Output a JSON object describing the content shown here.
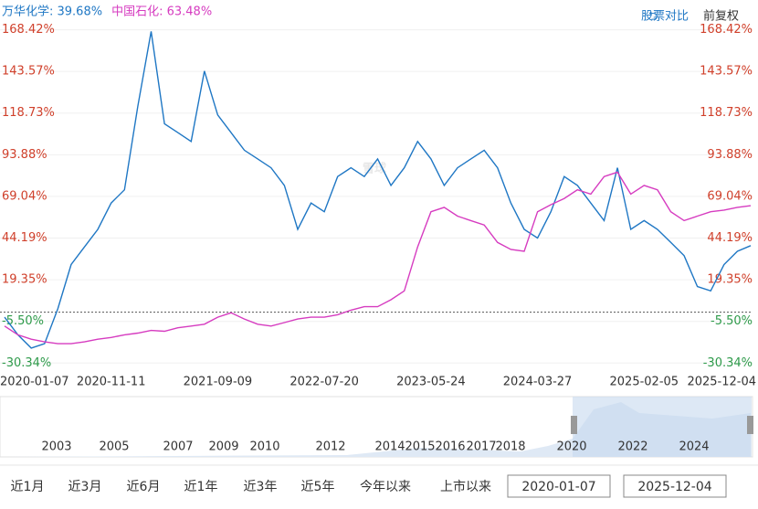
{
  "chart_data": {
    "type": "line",
    "toolbar": {
      "compare": "股票对比",
      "adjust": "前复权"
    },
    "watermark": "雪球",
    "categories": [
      "2020-01-07",
      null,
      null,
      null,
      null,
      null,
      null,
      null,
      "2020-11-11",
      null,
      null,
      null,
      null,
      null,
      null,
      null,
      "2021-09-09",
      null,
      null,
      null,
      null,
      null,
      null,
      null,
      "2022-07-20",
      null,
      null,
      null,
      null,
      null,
      null,
      null,
      "2023-05-24",
      null,
      null,
      null,
      null,
      null,
      null,
      null,
      "2024-03-27",
      null,
      null,
      null,
      null,
      null,
      null,
      null,
      "2025-02-05",
      null,
      null,
      null,
      null,
      null,
      null,
      null,
      "2025-12-04"
    ],
    "series": [
      {
        "name": "万华化学: 39.68%",
        "color": "#1f77c4",
        "values": [
          -3.0,
          -13.5,
          -21.4,
          -18.8,
          2.2,
          28.4,
          38.9,
          49.4,
          65.1,
          73.0,
          122.8,
          167.4,
          112.3,
          107.1,
          101.8,
          143.8,
          117.6,
          107.1,
          96.6,
          91.4,
          86.1,
          75.6,
          49.4,
          65.1,
          59.9,
          80.9,
          86.1,
          80.9,
          91.4,
          75.6,
          86.1,
          101.8,
          91.4,
          75.6,
          86.1,
          91.4,
          96.6,
          86.1,
          65.1,
          49.4,
          44.2,
          59.9,
          80.9,
          75.6,
          65.1,
          54.6,
          86.1,
          49.4,
          54.6,
          49.4,
          41.6,
          33.7,
          15.3,
          12.7,
          28.4,
          36.3,
          39.68
        ]
      },
      {
        "name": "中国石化: 63.48%",
        "color": "#d63cc0",
        "values": [
          -8.3,
          -13.5,
          -16.1,
          -17.7,
          -18.8,
          -18.8,
          -17.7,
          -16.1,
          -15.1,
          -13.5,
          -12.5,
          -10.9,
          -11.4,
          -9.3,
          -8.3,
          -7.2,
          -3.0,
          -0.4,
          -4.1,
          -7.2,
          -8.3,
          -6.2,
          -4.1,
          -3.0,
          -3.0,
          -1.5,
          1.2,
          3.3,
          3.3,
          7.4,
          12.7,
          38.9,
          59.9,
          62.5,
          57.3,
          54.6,
          52.0,
          41.6,
          37.4,
          36.3,
          59.9,
          64.1,
          67.8,
          73.0,
          70.4,
          80.9,
          83.5,
          70.4,
          75.6,
          73.0,
          59.9,
          54.6,
          57.3,
          59.9,
          60.9,
          62.5,
          63.48
        ]
      }
    ],
    "ylim": [
      -34,
      172
    ],
    "yticks": [
      {
        "value": 168.42,
        "label": "168.42%"
      },
      {
        "value": 143.57,
        "label": "143.57%"
      },
      {
        "value": 118.73,
        "label": "118.73%"
      },
      {
        "value": 93.88,
        "label": "93.88%"
      },
      {
        "value": 69.04,
        "label": "69.04%"
      },
      {
        "value": 44.19,
        "label": "44.19%"
      },
      {
        "value": 19.35,
        "label": "19.35%"
      },
      {
        "value": -5.5,
        "label": "-5.50%"
      },
      {
        "value": -30.34,
        "label": "-30.34%"
      }
    ],
    "grid": true,
    "navigator": {
      "years": [
        "2003",
        "2005",
        "2007",
        "2009",
        "2010",
        "2012",
        "2014",
        "2015",
        "2016",
        "2017",
        "2018",
        "2020",
        "2022",
        "2024"
      ]
    },
    "ranges": [
      "近1月",
      "近3月",
      "近6月",
      "近1年",
      "近3年",
      "近5年",
      "今年以来",
      "上市以来"
    ],
    "start_date": "2020-01-07",
    "end_date": "2025-12-04"
  }
}
